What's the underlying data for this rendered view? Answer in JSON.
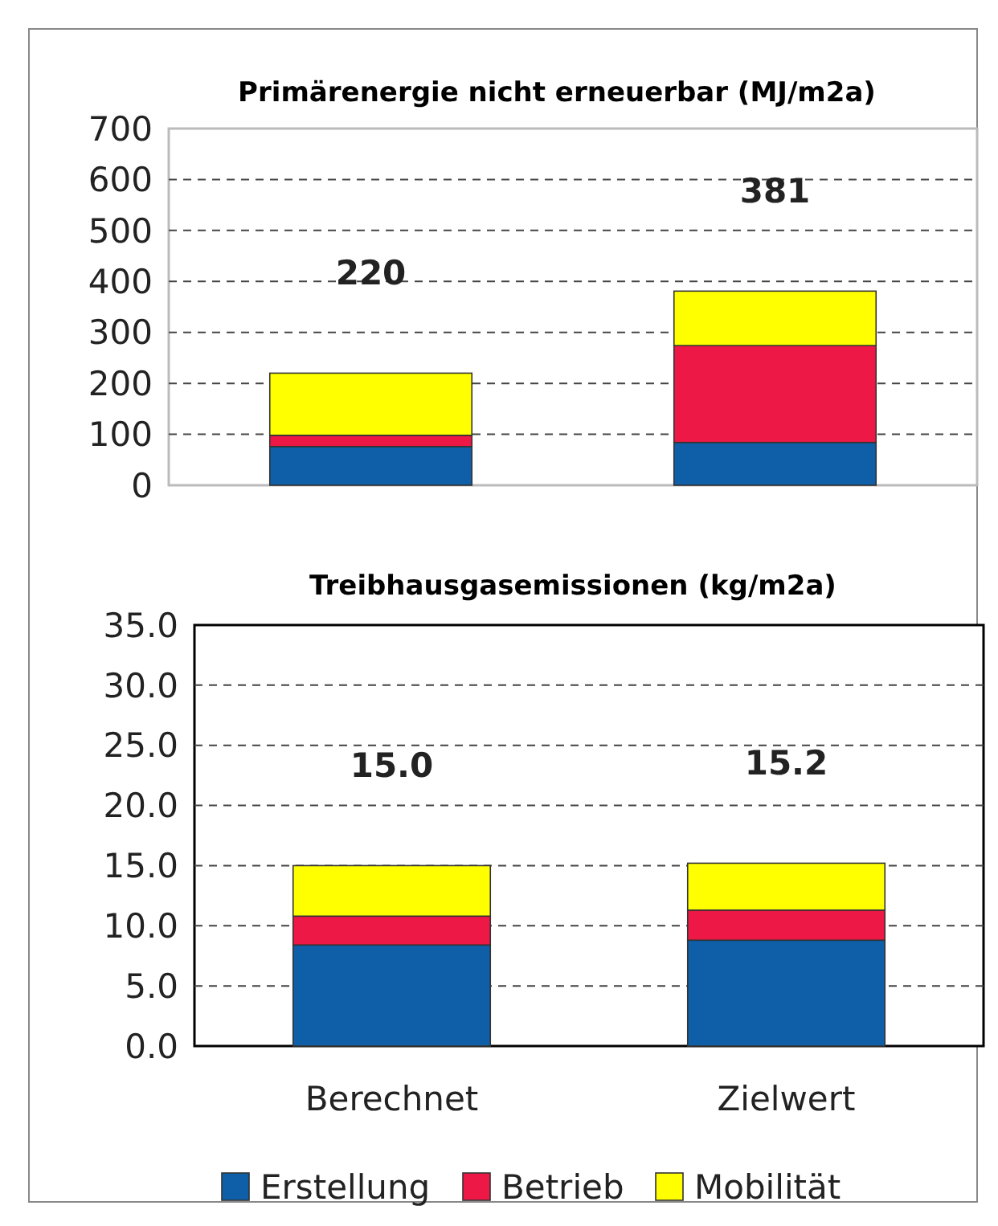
{
  "chart_data": [
    {
      "type": "bar",
      "title": "Primärenergie nicht erneuerbar (MJ/m2a)",
      "categories": [
        null,
        null
      ],
      "stacked": true,
      "series": [
        {
          "color": "#0e5ea8",
          "values": [
            76,
            84
          ]
        },
        {
          "color": "#ee1846",
          "values": [
            22,
            190
          ]
        },
        {
          "color": "#ffff00",
          "values": [
            122,
            107
          ]
        }
      ],
      "totals": [
        "220",
        "381"
      ],
      "ylim": [
        0,
        700
      ],
      "yticks": [
        0,
        100,
        200,
        300,
        400,
        500,
        600,
        700
      ],
      "grid": "y",
      "tick_labels": "y",
      "legend": false
    },
    {
      "type": "bar",
      "title": "Treibhausgasemissionen (kg/m2a)",
      "categories": [
        "Berechnet",
        "Zielwert"
      ],
      "stacked": true,
      "series": [
        {
          "name": "Erstellung",
          "color": "#0e5ea8",
          "values": [
            8.4,
            8.8
          ]
        },
        {
          "name": "Betrieb",
          "color": "#ee1846",
          "values": [
            2.4,
            2.5
          ]
        },
        {
          "name": "Mobilität",
          "color": "#ffff00",
          "values": [
            4.2,
            3.9
          ]
        }
      ],
      "totals": [
        "15.0",
        "15.2"
      ],
      "ylim": [
        0,
        35
      ],
      "yticks": [
        {
          "value": 0,
          "label": "0.0"
        },
        {
          "value": 5,
          "label": "5.0"
        },
        {
          "value": 10,
          "label": "10.0"
        },
        {
          "value": 15,
          "label": "15.0"
        },
        {
          "value": 20,
          "label": "20.0"
        },
        {
          "value": 25,
          "label": "25.0"
        },
        {
          "value": 30,
          "label": "30.0"
        },
        {
          "value": 35,
          "label": "35.0"
        }
      ],
      "grid": "y",
      "legend": "bottom"
    }
  ]
}
